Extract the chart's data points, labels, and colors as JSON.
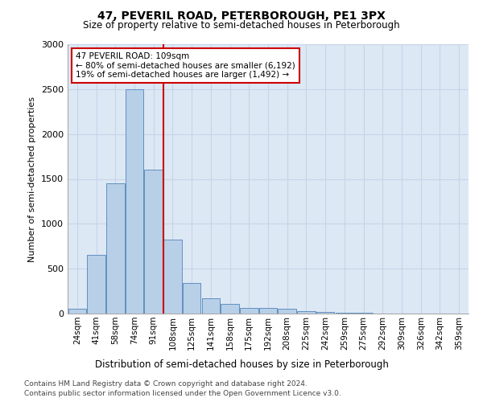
{
  "title1": "47, PEVERIL ROAD, PETERBOROUGH, PE1 3PX",
  "title2": "Size of property relative to semi-detached houses in Peterborough",
  "xlabel": "Distribution of semi-detached houses by size in Peterborough",
  "ylabel": "Number of semi-detached properties",
  "categories": [
    "24sqm",
    "41sqm",
    "58sqm",
    "74sqm",
    "91sqm",
    "108sqm",
    "125sqm",
    "141sqm",
    "158sqm",
    "175sqm",
    "192sqm",
    "208sqm",
    "225sqm",
    "242sqm",
    "259sqm",
    "275sqm",
    "292sqm",
    "309sqm",
    "326sqm",
    "342sqm",
    "359sqm"
  ],
  "values": [
    50,
    650,
    1450,
    2500,
    1600,
    820,
    340,
    170,
    110,
    60,
    60,
    50,
    30,
    20,
    5,
    5,
    3,
    3,
    2,
    2,
    2
  ],
  "bar_color": "#b8cfe8",
  "bar_edge_color": "#6090c0",
  "vline_color": "#cc0000",
  "annotation_text": "47 PEVERIL ROAD: 109sqm\n← 80% of semi-detached houses are smaller (6,192)\n19% of semi-detached houses are larger (1,492) →",
  "annotation_box_color": "#ffffff",
  "annotation_box_edge": "#cc0000",
  "footer1": "Contains HM Land Registry data © Crown copyright and database right 2024.",
  "footer2": "Contains public sector information licensed under the Open Government Licence v3.0.",
  "ylim": [
    0,
    3000
  ],
  "grid_color": "#c8d4e8",
  "background_color": "#dde8f5"
}
